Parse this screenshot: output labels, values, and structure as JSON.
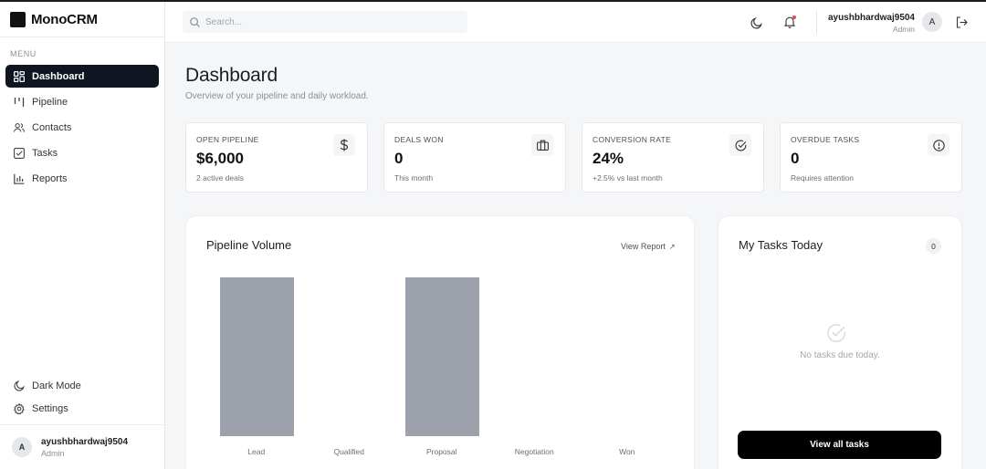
{
  "app": {
    "name": "MonoCRM"
  },
  "sidebar": {
    "menu_label": "MENU",
    "items": [
      {
        "label": "Dashboard",
        "icon": "grid-icon",
        "active": true
      },
      {
        "label": "Pipeline",
        "icon": "columns-icon"
      },
      {
        "label": "Contacts",
        "icon": "users-icon"
      },
      {
        "label": "Tasks",
        "icon": "checkbox-icon"
      },
      {
        "label": "Reports",
        "icon": "bar-chart-icon"
      }
    ],
    "dark_mode_label": "Dark Mode",
    "settings_label": "Settings",
    "user": {
      "initial": "A",
      "name": "ayushbhardwaj9504",
      "role": "Admin"
    }
  },
  "topbar": {
    "search_placeholder": "Search...",
    "user": {
      "initial": "A",
      "name": "ayushbhardwaj9504",
      "role": "Admin"
    }
  },
  "page": {
    "title": "Dashboard",
    "subtitle": "Overview of your pipeline and daily workload."
  },
  "kpis": [
    {
      "label": "OPEN PIPELINE",
      "value": "$6,000",
      "sub": "2 active deals",
      "icon": "dollar-icon"
    },
    {
      "label": "DEALS WON",
      "value": "0",
      "sub": "This month",
      "icon": "briefcase-icon"
    },
    {
      "label": "CONVERSION RATE",
      "value": "24%",
      "sub": "+2.5% vs last month",
      "icon": "check-circle-icon"
    },
    {
      "label": "OVERDUE TASKS",
      "value": "0",
      "sub": "Requires attention",
      "icon": "alert-circle-icon"
    }
  ],
  "pipeline": {
    "title": "Pipeline Volume",
    "view_report": "View Report",
    "arrow": "↗"
  },
  "tasks": {
    "title": "My Tasks Today",
    "count": "0",
    "empty_text": "No tasks due today.",
    "view_all": "View all tasks"
  },
  "colors": {
    "accent": "#101522",
    "bar": "#9ca1ab",
    "notification": "#e5484d"
  },
  "chart_data": {
    "type": "bar",
    "categories": [
      "Lead",
      "Qualified",
      "Proposal",
      "Negotiation",
      "Won"
    ],
    "values": [
      1,
      0,
      1,
      0,
      0
    ],
    "title": "Pipeline Volume",
    "grid": false
  }
}
